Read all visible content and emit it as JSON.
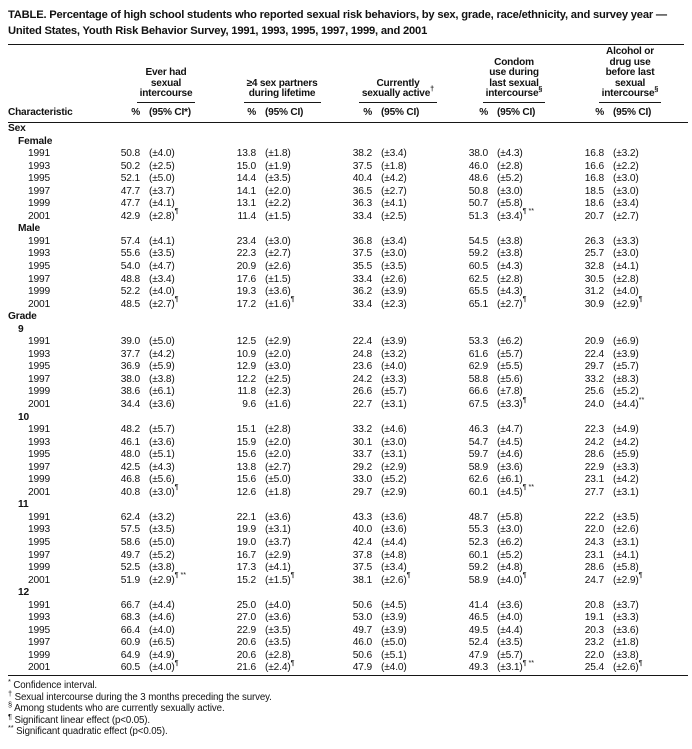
{
  "title": {
    "line1": "TABLE. Percentage of high school students who reported sexual risk behaviors, by sex, grade, race/ethnicity, and survey year —",
    "line2": "United States, Youth Risk Behavior Survey, 1991, 1993, 1995, 1997, 1999, and 2001"
  },
  "header": {
    "characteristic": "Characteristic",
    "groups": [
      {
        "lines": [
          "Ever had",
          "sexual",
          "intercourse"
        ],
        "sup": "",
        "pct": "%",
        "ci": "(95% CI*)"
      },
      {
        "lines": [
          "≥4 sex partners",
          "during lifetime"
        ],
        "sup": "",
        "pct": "%",
        "ci": "(95% CI)"
      },
      {
        "lines": [
          "Currently",
          "sexually active"
        ],
        "sup": "†",
        "pct": "%",
        "ci": "(95% CI)"
      },
      {
        "lines": [
          "Condom",
          "use during",
          "last sexual",
          "intercourse"
        ],
        "sup": "§",
        "pct": "%",
        "ci": "(95% CI)"
      },
      {
        "lines": [
          "Alcohol or",
          "drug use",
          "before last",
          "sexual",
          "intercourse"
        ],
        "sup": "§",
        "pct": "%",
        "ci": "(95% CI)"
      }
    ]
  },
  "rows": [
    {
      "type": "section",
      "label": "Sex"
    },
    {
      "type": "subsection",
      "label": "Female"
    },
    {
      "type": "data",
      "label": "1991",
      "c": [
        [
          "50.8",
          "(±4.0)",
          ""
        ],
        [
          "13.8",
          "(±1.8)",
          ""
        ],
        [
          "38.2",
          "(±3.4)",
          ""
        ],
        [
          "38.0",
          "(±4.3)",
          ""
        ],
        [
          "16.8",
          "(±3.2)",
          ""
        ]
      ]
    },
    {
      "type": "data",
      "label": "1993",
      "c": [
        [
          "50.2",
          "(±2.5)",
          ""
        ],
        [
          "15.0",
          "(±1.9)",
          ""
        ],
        [
          "37.5",
          "(±1.8)",
          ""
        ],
        [
          "46.0",
          "(±2.8)",
          ""
        ],
        [
          "16.6",
          "(±2.2)",
          ""
        ]
      ]
    },
    {
      "type": "data",
      "label": "1995",
      "c": [
        [
          "52.1",
          "(±5.0)",
          ""
        ],
        [
          "14.4",
          "(±3.5)",
          ""
        ],
        [
          "40.4",
          "(±4.2)",
          ""
        ],
        [
          "48.6",
          "(±5.2)",
          ""
        ],
        [
          "16.8",
          "(±3.0)",
          ""
        ]
      ]
    },
    {
      "type": "data",
      "label": "1997",
      "c": [
        [
          "47.7",
          "(±3.7)",
          ""
        ],
        [
          "14.1",
          "(±2.0)",
          ""
        ],
        [
          "36.5",
          "(±2.7)",
          ""
        ],
        [
          "50.8",
          "(±3.0)",
          ""
        ],
        [
          "18.5",
          "(±3.0)",
          ""
        ]
      ]
    },
    {
      "type": "data",
      "label": "1999",
      "c": [
        [
          "47.7",
          "(±4.1)",
          ""
        ],
        [
          "13.1",
          "(±2.2)",
          ""
        ],
        [
          "36.3",
          "(±4.1)",
          ""
        ],
        [
          "50.7",
          "(±5.8)",
          ""
        ],
        [
          "18.6",
          "(±3.4)",
          ""
        ]
      ]
    },
    {
      "type": "data",
      "label": "2001",
      "c": [
        [
          "42.9",
          "(±2.8)",
          "¶"
        ],
        [
          "11.4",
          "(±1.5)",
          ""
        ],
        [
          "33.4",
          "(±2.5)",
          ""
        ],
        [
          "51.3",
          "(±3.4)",
          "¶ **"
        ],
        [
          "20.7",
          "(±2.7)",
          ""
        ]
      ]
    },
    {
      "type": "subsection",
      "label": "Male"
    },
    {
      "type": "data",
      "label": "1991",
      "c": [
        [
          "57.4",
          "(±4.1)",
          ""
        ],
        [
          "23.4",
          "(±3.0)",
          ""
        ],
        [
          "36.8",
          "(±3.4)",
          ""
        ],
        [
          "54.5",
          "(±3.8)",
          ""
        ],
        [
          "26.3",
          "(±3.3)",
          ""
        ]
      ]
    },
    {
      "type": "data",
      "label": "1993",
      "c": [
        [
          "55.6",
          "(±3.5)",
          ""
        ],
        [
          "22.3",
          "(±2.7)",
          ""
        ],
        [
          "37.5",
          "(±3.0)",
          ""
        ],
        [
          "59.2",
          "(±3.8)",
          ""
        ],
        [
          "25.7",
          "(±3.0)",
          ""
        ]
      ]
    },
    {
      "type": "data",
      "label": "1995",
      "c": [
        [
          "54.0",
          "(±4.7)",
          ""
        ],
        [
          "20.9",
          "(±2.6)",
          ""
        ],
        [
          "35.5",
          "(±3.5)",
          ""
        ],
        [
          "60.5",
          "(±4.3)",
          ""
        ],
        [
          "32.8",
          "(±4.1)",
          ""
        ]
      ]
    },
    {
      "type": "data",
      "label": "1997",
      "c": [
        [
          "48.8",
          "(±3.4)",
          ""
        ],
        [
          "17.6",
          "(±1.5)",
          ""
        ],
        [
          "33.4",
          "(±2.6)",
          ""
        ],
        [
          "62.5",
          "(±2.8)",
          ""
        ],
        [
          "30.5",
          "(±2.8)",
          ""
        ]
      ]
    },
    {
      "type": "data",
      "label": "1999",
      "c": [
        [
          "52.2",
          "(±4.0)",
          ""
        ],
        [
          "19.3",
          "(±3.6)",
          ""
        ],
        [
          "36.2",
          "(±3.9)",
          ""
        ],
        [
          "65.5",
          "(±4.3)",
          ""
        ],
        [
          "31.2",
          "(±4.0)",
          ""
        ]
      ]
    },
    {
      "type": "data",
      "label": "2001",
      "c": [
        [
          "48.5",
          "(±2.7)",
          "¶"
        ],
        [
          "17.2",
          "(±1.6)",
          "¶"
        ],
        [
          "33.4",
          "(±2.3)",
          ""
        ],
        [
          "65.1",
          "(±2.7)",
          "¶"
        ],
        [
          "30.9",
          "(±2.9)",
          "¶"
        ]
      ]
    },
    {
      "type": "section",
      "label": "Grade"
    },
    {
      "type": "subsection",
      "label": "9"
    },
    {
      "type": "data",
      "label": "1991",
      "c": [
        [
          "39.0",
          "(±5.0)",
          ""
        ],
        [
          "12.5",
          "(±2.9)",
          ""
        ],
        [
          "22.4",
          "(±3.9)",
          ""
        ],
        [
          "53.3",
          "(±6.2)",
          ""
        ],
        [
          "20.9",
          "(±6.9)",
          ""
        ]
      ]
    },
    {
      "type": "data",
      "label": "1993",
      "c": [
        [
          "37.7",
          "(±4.2)",
          ""
        ],
        [
          "10.9",
          "(±2.0)",
          ""
        ],
        [
          "24.8",
          "(±3.2)",
          ""
        ],
        [
          "61.6",
          "(±5.7)",
          ""
        ],
        [
          "22.4",
          "(±3.9)",
          ""
        ]
      ]
    },
    {
      "type": "data",
      "label": "1995",
      "c": [
        [
          "36.9",
          "(±5.9)",
          ""
        ],
        [
          "12.9",
          "(±3.0)",
          ""
        ],
        [
          "23.6",
          "(±4.0)",
          ""
        ],
        [
          "62.9",
          "(±5.5)",
          ""
        ],
        [
          "29.7",
          "(±5.7)",
          ""
        ]
      ]
    },
    {
      "type": "data",
      "label": "1997",
      "c": [
        [
          "38.0",
          "(±3.8)",
          ""
        ],
        [
          "12.2",
          "(±2.5)",
          ""
        ],
        [
          "24.2",
          "(±3.3)",
          ""
        ],
        [
          "58.8",
          "(±5.6)",
          ""
        ],
        [
          "33.2",
          "(±8.3)",
          ""
        ]
      ]
    },
    {
      "type": "data",
      "label": "1999",
      "c": [
        [
          "38.6",
          "(±6.1)",
          ""
        ],
        [
          "11.8",
          "(±2.3)",
          ""
        ],
        [
          "26.6",
          "(±5.7)",
          ""
        ],
        [
          "66.6",
          "(±7.8)",
          ""
        ],
        [
          "25.6",
          "(±5.2)",
          ""
        ]
      ]
    },
    {
      "type": "data",
      "label": "2001",
      "c": [
        [
          "34.4",
          "(±3.6)",
          ""
        ],
        [
          "9.6",
          "(±1.6)",
          ""
        ],
        [
          "22.7",
          "(±3.1)",
          ""
        ],
        [
          "67.5",
          "(±3.3)",
          "¶"
        ],
        [
          "24.0",
          "(±4.4)",
          "**"
        ]
      ]
    },
    {
      "type": "subsection",
      "label": "10"
    },
    {
      "type": "data",
      "label": "1991",
      "c": [
        [
          "48.2",
          "(±5.7)",
          ""
        ],
        [
          "15.1",
          "(±2.8)",
          ""
        ],
        [
          "33.2",
          "(±4.6)",
          ""
        ],
        [
          "46.3",
          "(±4.7)",
          ""
        ],
        [
          "22.3",
          "(±4.9)",
          ""
        ]
      ]
    },
    {
      "type": "data",
      "label": "1993",
      "c": [
        [
          "46.1",
          "(±3.6)",
          ""
        ],
        [
          "15.9",
          "(±2.0)",
          ""
        ],
        [
          "30.1",
          "(±3.0)",
          ""
        ],
        [
          "54.7",
          "(±4.5)",
          ""
        ],
        [
          "24.2",
          "(±4.2)",
          ""
        ]
      ]
    },
    {
      "type": "data",
      "label": "1995",
      "c": [
        [
          "48.0",
          "(±5.1)",
          ""
        ],
        [
          "15.6",
          "(±2.0)",
          ""
        ],
        [
          "33.7",
          "(±3.1)",
          ""
        ],
        [
          "59.7",
          "(±4.6)",
          ""
        ],
        [
          "28.6",
          "(±5.9)",
          ""
        ]
      ]
    },
    {
      "type": "data",
      "label": "1997",
      "c": [
        [
          "42.5",
          "(±4.3)",
          ""
        ],
        [
          "13.8",
          "(±2.7)",
          ""
        ],
        [
          "29.2",
          "(±2.9)",
          ""
        ],
        [
          "58.9",
          "(±3.6)",
          ""
        ],
        [
          "22.9",
          "(±3.3)",
          ""
        ]
      ]
    },
    {
      "type": "data",
      "label": "1999",
      "c": [
        [
          "46.8",
          "(±5.6)",
          ""
        ],
        [
          "15.6",
          "(±5.0)",
          ""
        ],
        [
          "33.0",
          "(±5.2)",
          ""
        ],
        [
          "62.6",
          "(±6.1)",
          ""
        ],
        [
          "23.1",
          "(±4.2)",
          ""
        ]
      ]
    },
    {
      "type": "data",
      "label": "2001",
      "c": [
        [
          "40.8",
          "(±3.0)",
          "¶"
        ],
        [
          "12.6",
          "(±1.8)",
          ""
        ],
        [
          "29.7",
          "(±2.9)",
          ""
        ],
        [
          "60.1",
          "(±4.5)",
          "¶ **"
        ],
        [
          "27.7",
          "(±3.1)",
          ""
        ]
      ]
    },
    {
      "type": "subsection",
      "label": "11"
    },
    {
      "type": "data",
      "label": "1991",
      "c": [
        [
          "62.4",
          "(±3.2)",
          ""
        ],
        [
          "22.1",
          "(±3.6)",
          ""
        ],
        [
          "43.3",
          "(±3.6)",
          ""
        ],
        [
          "48.7",
          "(±5.8)",
          ""
        ],
        [
          "22.2",
          "(±3.5)",
          ""
        ]
      ]
    },
    {
      "type": "data",
      "label": "1993",
      "c": [
        [
          "57.5",
          "(±3.5)",
          ""
        ],
        [
          "19.9",
          "(±3.1)",
          ""
        ],
        [
          "40.0",
          "(±3.6)",
          ""
        ],
        [
          "55.3",
          "(±3.0)",
          ""
        ],
        [
          "22.0",
          "(±2.6)",
          ""
        ]
      ]
    },
    {
      "type": "data",
      "label": "1995",
      "c": [
        [
          "58.6",
          "(±5.0)",
          ""
        ],
        [
          "19.0",
          "(±3.7)",
          ""
        ],
        [
          "42.4",
          "(±4.4)",
          ""
        ],
        [
          "52.3",
          "(±6.2)",
          ""
        ],
        [
          "24.3",
          "(±3.1)",
          ""
        ]
      ]
    },
    {
      "type": "data",
      "label": "1997",
      "c": [
        [
          "49.7",
          "(±5.2)",
          ""
        ],
        [
          "16.7",
          "(±2.9)",
          ""
        ],
        [
          "37.8",
          "(±4.8)",
          ""
        ],
        [
          "60.1",
          "(±5.2)",
          ""
        ],
        [
          "23.1",
          "(±4.1)",
          ""
        ]
      ]
    },
    {
      "type": "data",
      "label": "1999",
      "c": [
        [
          "52.5",
          "(±3.8)",
          ""
        ],
        [
          "17.3",
          "(±4.1)",
          ""
        ],
        [
          "37.5",
          "(±3.4)",
          ""
        ],
        [
          "59.2",
          "(±4.8)",
          ""
        ],
        [
          "28.6",
          "(±5.8)",
          ""
        ]
      ]
    },
    {
      "type": "data",
      "label": "2001",
      "c": [
        [
          "51.9",
          "(±2.9)",
          "¶ **"
        ],
        [
          "15.2",
          "(±1.5)",
          "¶"
        ],
        [
          "38.1",
          "(±2.6)",
          "¶"
        ],
        [
          "58.9",
          "(±4.0)",
          "¶"
        ],
        [
          "24.7",
          "(±2.9)",
          "¶"
        ]
      ]
    },
    {
      "type": "subsection",
      "label": "12"
    },
    {
      "type": "data",
      "label": "1991",
      "c": [
        [
          "66.7",
          "(±4.4)",
          ""
        ],
        [
          "25.0",
          "(±4.0)",
          ""
        ],
        [
          "50.6",
          "(±4.5)",
          ""
        ],
        [
          "41.4",
          "(±3.6)",
          ""
        ],
        [
          "20.8",
          "(±3.7)",
          ""
        ]
      ]
    },
    {
      "type": "data",
      "label": "1993",
      "c": [
        [
          "68.3",
          "(±4.6)",
          ""
        ],
        [
          "27.0",
          "(±3.6)",
          ""
        ],
        [
          "53.0",
          "(±3.9)",
          ""
        ],
        [
          "46.5",
          "(±4.0)",
          ""
        ],
        [
          "19.1",
          "(±3.3)",
          ""
        ]
      ]
    },
    {
      "type": "data",
      "label": "1995",
      "c": [
        [
          "66.4",
          "(±4.0)",
          ""
        ],
        [
          "22.9",
          "(±3.5)",
          ""
        ],
        [
          "49.7",
          "(±3.9)",
          ""
        ],
        [
          "49.5",
          "(±4.4)",
          ""
        ],
        [
          "20.3",
          "(±3.6)",
          ""
        ]
      ]
    },
    {
      "type": "data",
      "label": "1997",
      "c": [
        [
          "60.9",
          "(±6.5)",
          ""
        ],
        [
          "20.6",
          "(±3.5)",
          ""
        ],
        [
          "46.0",
          "(±5.0)",
          ""
        ],
        [
          "52.4",
          "(±3.5)",
          ""
        ],
        [
          "23.2",
          "(±1.8)",
          ""
        ]
      ]
    },
    {
      "type": "data",
      "label": "1999",
      "c": [
        [
          "64.9",
          "(±4.9)",
          ""
        ],
        [
          "20.6",
          "(±2.8)",
          ""
        ],
        [
          "50.6",
          "(±5.1)",
          ""
        ],
        [
          "47.9",
          "(±5.7)",
          ""
        ],
        [
          "22.0",
          "(±3.8)",
          ""
        ]
      ]
    },
    {
      "type": "data",
      "label": "2001",
      "c": [
        [
          "60.5",
          "(±4.0)",
          "¶"
        ],
        [
          "21.6",
          "(±2.4)",
          "¶"
        ],
        [
          "47.9",
          "(±4.0)",
          ""
        ],
        [
          "49.3",
          "(±3.1)",
          "¶ **"
        ],
        [
          "25.4",
          "(±2.6)",
          "¶"
        ]
      ]
    }
  ],
  "footnotes": [
    {
      "mark": "*",
      "text": "Confidence interval."
    },
    {
      "mark": "†",
      "text": "Sexual intercourse during the 3 months preceding the survey."
    },
    {
      "mark": "§",
      "text": "Among students who are currently sexually active."
    },
    {
      "mark": "¶",
      "text": "Significant linear effect (p<0.05)."
    },
    {
      "mark": "**",
      "text": "Significant quadratic effect (p<0.05)."
    }
  ]
}
